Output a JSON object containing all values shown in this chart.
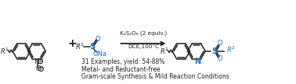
{
  "bg_color": "#ffffff",
  "text_color": "#231f20",
  "blue_color": "#1a70c8",
  "arrow_color": "#231f20",
  "reagent_line1": "K₂S₂O₈ (2 equiv.)",
  "reagent_line2": "DCE,100°C",
  "bullet1": "31 Examples, yield: 54-88%",
  "bullet2": "Metal- and Reductant-free",
  "bullet3": "Gram-scale Synthesis & Mild Reaction Conditions",
  "plus_sign": "+",
  "figsize": [
    3.78,
    1.08
  ],
  "dpi": 100
}
